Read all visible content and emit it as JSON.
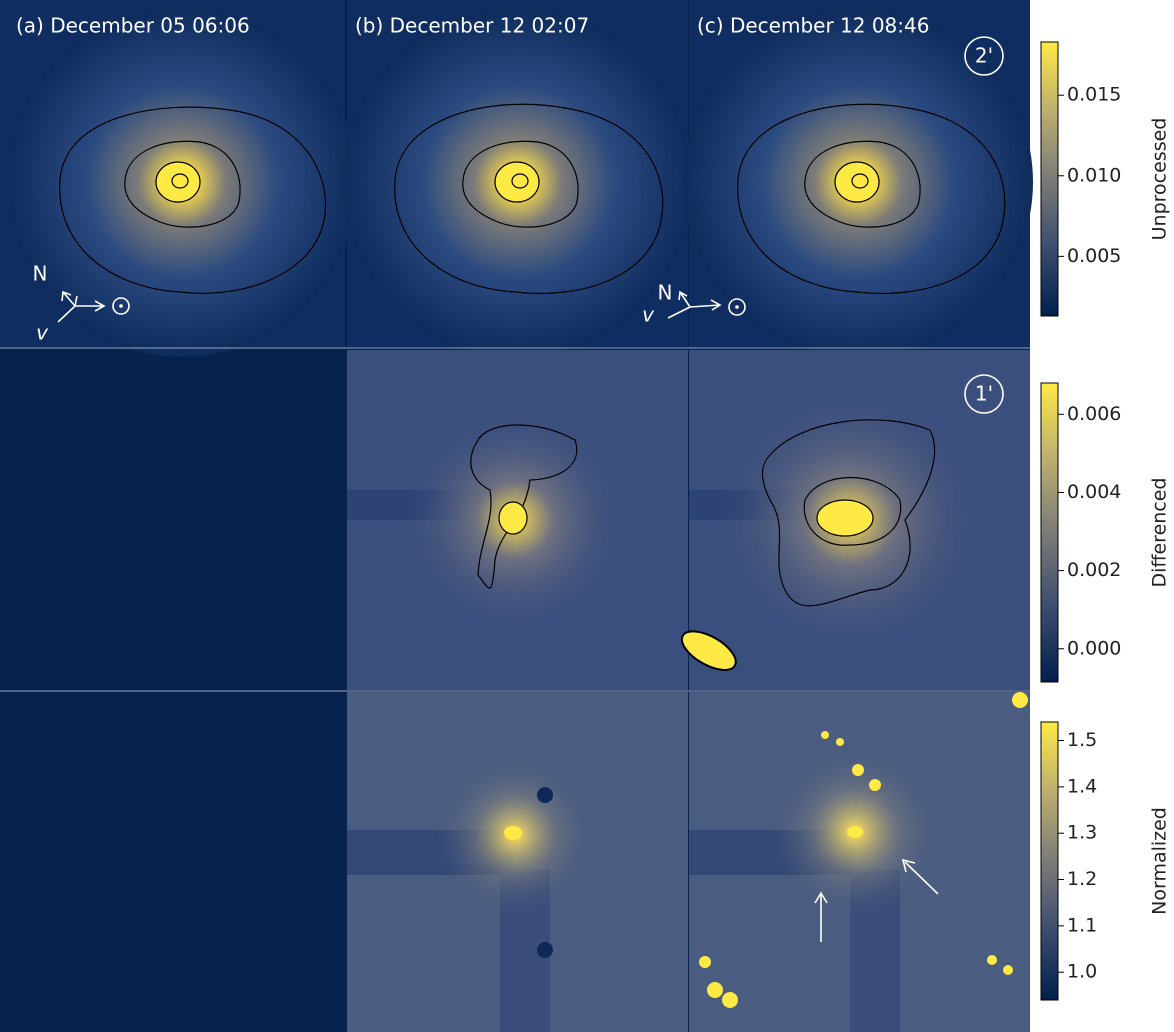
{
  "panels": {
    "labels": [
      "(a) December 05 06:06",
      "(b) December 12 02:07",
      "(c) December 12 08:46"
    ]
  },
  "scale_bars": [
    "2'",
    "1'"
  ],
  "compass": {
    "north": "N",
    "velocity": "v",
    "sun": "⊙"
  },
  "colorbars": [
    {
      "label": "Unprocessed",
      "lim": [
        0.0013,
        0.0183
      ],
      "ticks": [
        0.015,
        {
          "value": 0.01,
          "label": "0.010"
        },
        0.005
      ]
    },
    {
      "label": "Differenced",
      "lim": [
        -0.00085,
        0.0068
      ],
      "ticks": [
        0.006,
        0.004,
        0.002,
        {
          "value": 0,
          "label": "0.000"
        }
      ]
    },
    {
      "label": "Normalized",
      "lim": [
        0.94,
        1.54
      ],
      "ticks": [
        1.5,
        1.4,
        1.3,
        1.2,
        1.1,
        {
          "value": 1,
          "label": "1.0"
        }
      ]
    }
  ]
}
